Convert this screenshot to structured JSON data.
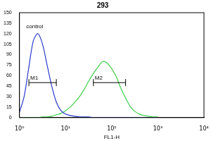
{
  "chart_data": {
    "type": "line",
    "title": "293",
    "x_label": "FL1-H",
    "log": "x",
    "x": [
      1,
      1.26,
      1.58,
      2,
      2.51,
      3.16,
      3.98,
      5.01,
      6.31,
      7.94,
      10,
      12.6,
      15.8,
      20,
      25.1,
      31.6,
      39.8,
      50.1,
      63.1,
      79.4,
      100,
      126,
      158,
      200,
      251,
      316,
      398,
      501,
      631,
      794,
      1000
    ],
    "series": [
      {
        "color": "#2b3bcc",
        "values": [
          8,
          30,
          70,
          110,
          120,
          105,
          75,
          45,
          22,
          10,
          5,
          3,
          2,
          1,
          1,
          1,
          0,
          0,
          0,
          0,
          0,
          0,
          0,
          0,
          0,
          0,
          0,
          0,
          0,
          0,
          0
        ]
      },
      {
        "color": "#3fcf4a",
        "values": [
          0,
          0,
          0,
          0,
          0,
          1,
          1,
          2,
          4,
          6,
          10,
          15,
          22,
          30,
          40,
          52,
          63,
          72,
          80,
          78,
          70,
          58,
          42,
          28,
          16,
          9,
          5,
          3,
          2,
          1,
          1
        ]
      }
    ],
    "xlim": [
      1,
      10000
    ],
    "xticks": [
      {
        "value": 1,
        "label": "10⁰"
      },
      {
        "value": 10,
        "label": "10¹"
      },
      {
        "value": 100,
        "label": "10²"
      },
      {
        "value": 1000,
        "label": "10³"
      },
      {
        "value": 10000,
        "label": "10⁴"
      }
    ],
    "ylim": [
      0,
      150
    ],
    "yticks": [
      0,
      15,
      30,
      45,
      60,
      75,
      90,
      105,
      120,
      135,
      150
    ],
    "grid": false,
    "annotations": [
      {
        "text": "control",
        "x": 1.4,
        "y": 130
      }
    ],
    "gates": [
      {
        "label": "M1",
        "x": [
          1.6,
          6.3
        ],
        "y": 50
      },
      {
        "label": "M2",
        "x": [
          40,
          200
        ],
        "y": 50
      }
    ]
  }
}
